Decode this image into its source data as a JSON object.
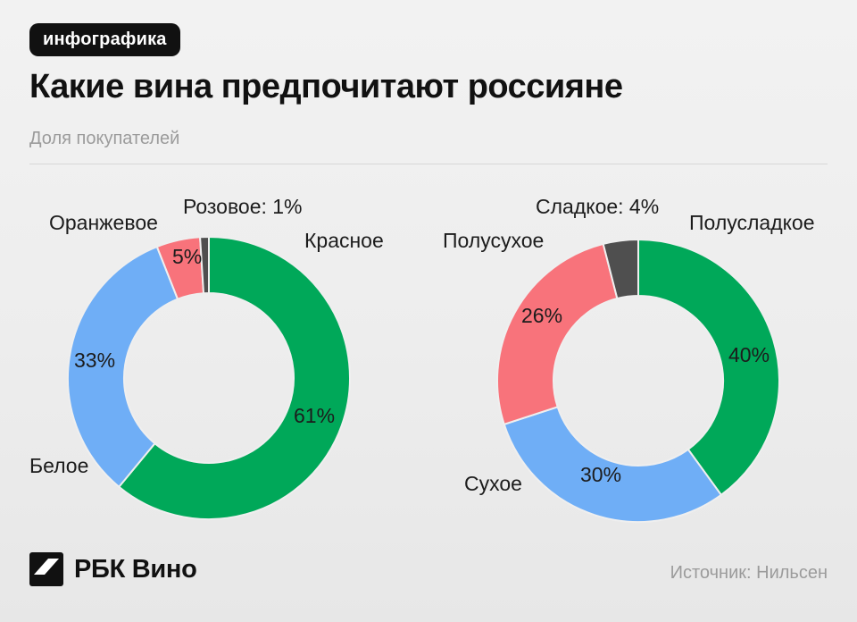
{
  "header": {
    "badge": "инфографика",
    "title": "Какие вина предпочитают россияне",
    "subtitle": "Доля покупателей"
  },
  "footer": {
    "brand": "РБК Вино",
    "source": "Источник: Нильсен"
  },
  "colors": {
    "green": "#00A859",
    "blue": "#6FAEF6",
    "red": "#F8737B",
    "dark": "#4F4F4F",
    "background": "#EFEFEF",
    "badge_bg": "#111111",
    "muted_text": "#9B9B9B"
  },
  "chart_data": [
    {
      "type": "pie",
      "variant": "donut",
      "name": "wine-preference-by-color",
      "legend_position": "around",
      "segments": [
        {
          "label": "Красное",
          "value": 61,
          "pct_label": "61%",
          "color": "#00A859"
        },
        {
          "label": "Белое",
          "value": 33,
          "pct_label": "33%",
          "color": "#6FAEF6"
        },
        {
          "label": "Оранжевое",
          "value": 5,
          "pct_label": "5%",
          "color": "#F8737B"
        },
        {
          "label": "Розовое",
          "value": 1,
          "pct_label": "1%",
          "callout": "Розовое: 1%",
          "color": "#4F4F4F"
        }
      ]
    },
    {
      "type": "pie",
      "variant": "donut",
      "name": "wine-preference-by-sweetness",
      "legend_position": "around",
      "segments": [
        {
          "label": "Полусладкое",
          "value": 40,
          "pct_label": "40%",
          "color": "#00A859"
        },
        {
          "label": "Сухое",
          "value": 30,
          "pct_label": "30%",
          "color": "#6FAEF6"
        },
        {
          "label": "Полусухое",
          "value": 26,
          "pct_label": "26%",
          "color": "#F8737B"
        },
        {
          "label": "Сладкое",
          "value": 4,
          "pct_label": "4%",
          "callout": "Сладкое: 4%",
          "color": "#4F4F4F"
        }
      ]
    }
  ]
}
